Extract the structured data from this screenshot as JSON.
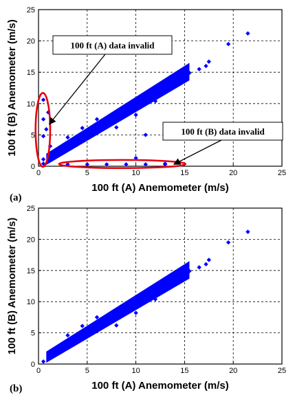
{
  "chart_data": [
    {
      "type": "scatter",
      "panel_label": "(a)",
      "xlabel": "100 ft (A) Anemometer (m/s)",
      "ylabel": "100 ft (B) Anemometer (m/s)",
      "xlim": [
        0,
        25
      ],
      "ylim": [
        0,
        25
      ],
      "xticks": [
        "0",
        "5",
        "10",
        "15",
        "20",
        "25"
      ],
      "yticks": [
        "0",
        "5",
        "10",
        "15",
        "20",
        "25"
      ],
      "grid": true,
      "marker_color": "#0000ff",
      "ellipse_color": "#e8000b",
      "points": [
        [
          0.5,
          0.4
        ],
        [
          1.5,
          1.5
        ],
        [
          3,
          2.9
        ],
        [
          5,
          4.9
        ],
        [
          7,
          6.8
        ],
        [
          9,
          8.7
        ],
        [
          11,
          10.5
        ],
        [
          13,
          12.3
        ],
        [
          15,
          14.2
        ],
        [
          16.5,
          15.5
        ],
        [
          17.5,
          16.7
        ],
        [
          19.5,
          19.5
        ],
        [
          21.5,
          21.2
        ],
        [
          3,
          4.6
        ],
        [
          4.5,
          6.1
        ],
        [
          6,
          7.5
        ],
        [
          8,
          6.2
        ],
        [
          10,
          8.2
        ],
        [
          12,
          10.4
        ],
        [
          14.5,
          13.1
        ],
        [
          15.5,
          14.9
        ],
        [
          17.2,
          16.0
        ],
        [
          0.5,
          1.1
        ],
        [
          0.5,
          4.8
        ],
        [
          0.5,
          7.5
        ],
        [
          0.5,
          10.6
        ],
        [
          1.2,
          3.2
        ],
        [
          1,
          8.6
        ],
        [
          0.8,
          5.9
        ],
        [
          3,
          0.3
        ],
        [
          5,
          0.3
        ],
        [
          7,
          0.3
        ],
        [
          9,
          0.3
        ],
        [
          11,
          0.3
        ],
        [
          13,
          0.3
        ],
        [
          10,
          1.3
        ],
        [
          11,
          5.0
        ],
        [
          13,
          0.4
        ]
      ],
      "annotations": [
        {
          "text": "100 ft (A) data invalid",
          "arrow_to": [
            1.1,
            6.7
          ]
        },
        {
          "text": "100 ft (B) data invalid",
          "arrow_to": [
            13.9,
            0.3
          ]
        }
      ],
      "ellipses": [
        {
          "cx": 0.45,
          "cy": 5.8,
          "rx": 0.75,
          "ry": 5.9
        },
        {
          "cx": 8.6,
          "cy": 0.35,
          "rx": 6.5,
          "ry": 0.65
        }
      ]
    },
    {
      "type": "scatter",
      "panel_label": "(b)",
      "xlabel": "100 ft (A) Anemometer (m/s)",
      "ylabel": "100 ft (B) Anemometer (m/s)",
      "xlim": [
        0,
        25
      ],
      "ylim": [
        0,
        25
      ],
      "xticks": [
        "0",
        "5",
        "10",
        "15",
        "20",
        "25"
      ],
      "yticks": [
        "0",
        "5",
        "10",
        "15",
        "20",
        "25"
      ],
      "grid": true,
      "marker_color": "#0000ff",
      "points": [
        [
          0.5,
          0.4
        ],
        [
          1.5,
          1.5
        ],
        [
          3,
          2.9
        ],
        [
          5,
          4.9
        ],
        [
          7,
          6.8
        ],
        [
          9,
          8.7
        ],
        [
          11,
          10.5
        ],
        [
          13,
          12.3
        ],
        [
          15,
          14.2
        ],
        [
          16.5,
          15.5
        ],
        [
          17.5,
          16.7
        ],
        [
          19.5,
          19.5
        ],
        [
          21.5,
          21.2
        ],
        [
          3,
          4.6
        ],
        [
          4.5,
          6.1
        ],
        [
          6,
          7.5
        ],
        [
          8,
          6.2
        ],
        [
          10,
          8.2
        ],
        [
          12,
          10.4
        ],
        [
          14.5,
          13.1
        ],
        [
          15.5,
          14.9
        ],
        [
          17.2,
          16.0
        ]
      ]
    }
  ]
}
